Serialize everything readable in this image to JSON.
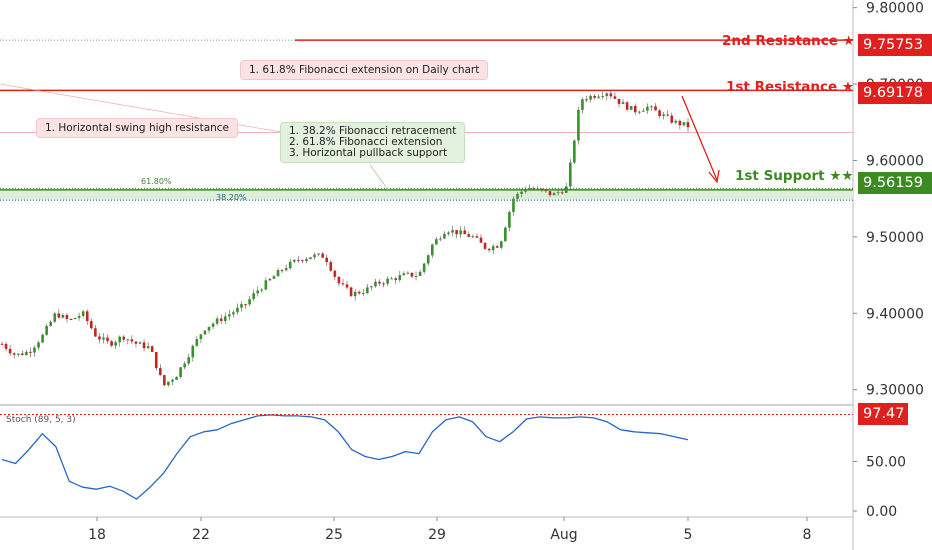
{
  "price_axis": {
    "ticks": [
      "9.80000",
      "9.70000",
      "9.60000",
      "9.50000",
      "9.40000",
      "9.30000"
    ],
    "tick_values": [
      9.8,
      9.7,
      9.6,
      9.5,
      9.4,
      9.3
    ]
  },
  "stoch_axis": {
    "ticks": [
      "50.00",
      "0.00"
    ],
    "tick_values": [
      50,
      0
    ]
  },
  "time_axis": {
    "labels": [
      "18",
      "22",
      "25",
      "29",
      "Aug",
      "5",
      "8"
    ]
  },
  "levels": {
    "res2": {
      "label": "2nd Resistance ★",
      "value": "9.75753",
      "color": "#e0201c"
    },
    "res1": {
      "label": "1st Resistance ★",
      "value": "9.69178",
      "color": "#e0201c"
    },
    "sup1": {
      "label": "1st Support ★★",
      "value": "9.56159",
      "color": "#3d8a25"
    }
  },
  "fib": {
    "f618": "61.80%",
    "f382": "38.20%"
  },
  "annotations": {
    "daily_ext": "1. 61.8% Fibonacci extension on Daily chart",
    "swing_high": "1. Horizontal swing high resistance",
    "support_1": "1. 38.2% Fibonacci retracement",
    "support_2": "2. 61.8% Fibonacci extension",
    "support_3": "3. Horizontal pullback support"
  },
  "stoch": {
    "label": "Stoch (89, 5, 3)",
    "value": "97.47"
  },
  "chart_data": {
    "type": "candlestick",
    "price": {
      "ylim": [
        9.28,
        9.81
      ],
      "path": [
        9.36,
        9.345,
        9.35,
        9.37,
        9.4,
        9.39,
        9.4,
        9.37,
        9.36,
        9.37,
        9.36,
        9.355,
        9.305,
        9.32,
        9.35,
        9.38,
        9.39,
        9.4,
        9.41,
        9.43,
        9.445,
        9.46,
        9.47,
        9.475,
        9.475,
        9.44,
        9.425,
        9.43,
        9.44,
        9.445,
        9.45,
        9.45,
        9.49,
        9.51,
        9.505,
        9.5,
        9.485,
        9.49,
        9.55,
        9.565,
        9.56,
        9.555,
        9.565,
        9.68,
        9.685,
        9.69,
        9.675,
        9.665,
        9.67,
        9.66,
        9.65,
        9.645
      ],
      "resistance_2": 9.75753,
      "resistance_1": 9.69178,
      "support_1": 9.56159,
      "fib_618": 9.5635,
      "fib_382": 9.548,
      "swing_line": 9.6365
    },
    "stoch": {
      "ylim": [
        0,
        105
      ],
      "value": 97.47,
      "path": [
        52,
        48,
        62,
        78,
        65,
        30,
        24,
        22,
        25,
        20,
        12,
        24,
        38,
        58,
        75,
        80,
        82,
        88,
        92,
        96,
        97,
        96,
        96,
        95,
        92,
        80,
        62,
        55,
        52,
        55,
        60,
        58,
        80,
        92,
        95,
        90,
        75,
        70,
        80,
        93,
        95,
        94,
        94,
        95,
        94,
        90,
        82,
        80,
        79,
        78,
        75,
        72
      ]
    }
  }
}
